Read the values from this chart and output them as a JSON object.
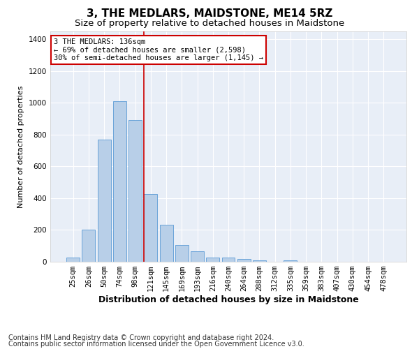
{
  "title": "3, THE MEDLARS, MAIDSTONE, ME14 5RZ",
  "subtitle": "Size of property relative to detached houses in Maidstone",
  "xlabel": "Distribution of detached houses by size in Maidstone",
  "ylabel": "Number of detached properties",
  "categories": [
    "25sqm",
    "26sqm",
    "50sqm",
    "74sqm",
    "98sqm",
    "121sqm",
    "145sqm",
    "169sqm",
    "193sqm",
    "216sqm",
    "240sqm",
    "264sqm",
    "288sqm",
    "312sqm",
    "335sqm",
    "359sqm",
    "383sqm",
    "407sqm",
    "430sqm",
    "454sqm",
    "478sqm"
  ],
  "bar_heights": [
    25,
    200,
    770,
    1010,
    890,
    425,
    235,
    105,
    68,
    25,
    25,
    18,
    10,
    0,
    10,
    0,
    0,
    0,
    0,
    0,
    0
  ],
  "bar_color": "#b8cfe8",
  "bar_edge_color": "#5b9bd5",
  "bar_alpha": 1.0,
  "vline_color": "#cc0000",
  "ylim": [
    0,
    1450
  ],
  "yticks": [
    0,
    200,
    400,
    600,
    800,
    1000,
    1200,
    1400
  ],
  "annotation_line1": "3 THE MEDLARS: 136sqm",
  "annotation_line2": "← 69% of detached houses are smaller (2,598)",
  "annotation_line3": "30% of semi-detached houses are larger (1,145) →",
  "annotation_box_color": "#cc0000",
  "annotation_box_bg": "#ffffff",
  "footer_line1": "Contains HM Land Registry data © Crown copyright and database right 2024.",
  "footer_line2": "Contains public sector information licensed under the Open Government Licence v3.0.",
  "plot_bg_color": "#e8eef7",
  "fig_bg_color": "#ffffff",
  "grid_color": "#ffffff",
  "title_fontsize": 11,
  "subtitle_fontsize": 9.5,
  "xlabel_fontsize": 9,
  "ylabel_fontsize": 8,
  "tick_fontsize": 7.5,
  "footer_fontsize": 7,
  "vline_bar_index": 5
}
